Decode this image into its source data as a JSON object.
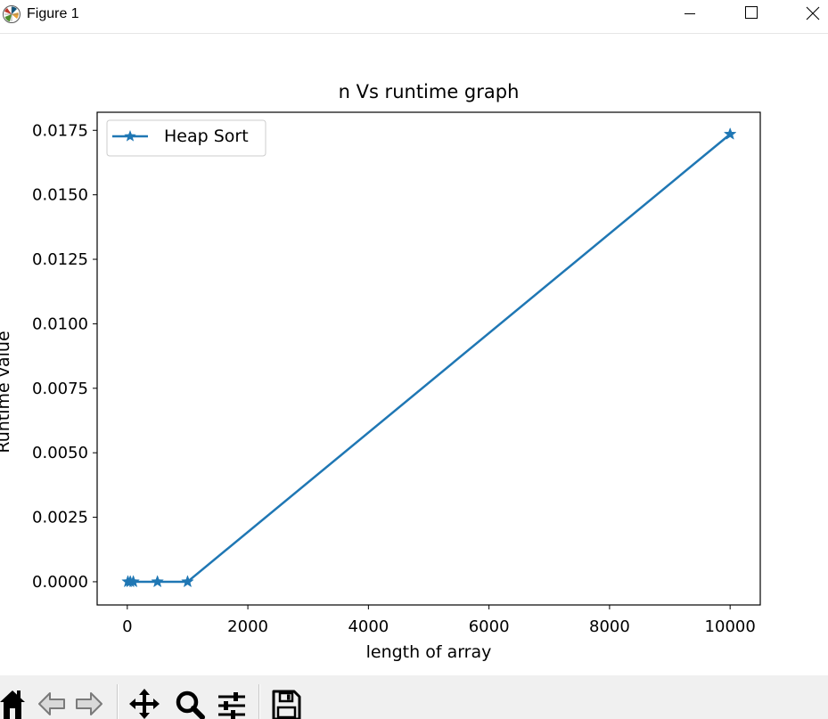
{
  "window": {
    "title": "Figure 1"
  },
  "colors": {
    "series": "#1f77b4",
    "axes": "#000000",
    "toolbar_bg": "#f0f0f0"
  },
  "toolbar": {
    "icons": [
      "home-icon",
      "back-icon",
      "forward-icon",
      "pan-icon",
      "zoom-icon",
      "configure-subplots-icon",
      "save-icon"
    ]
  },
  "chart_data": {
    "type": "line",
    "title": "n Vs runtime graph",
    "xlabel": "length of array",
    "ylabel": "Runtime value",
    "xlim": [
      -500,
      10500
    ],
    "ylim": [
      -0.0009,
      0.0182
    ],
    "xticks": [
      0,
      2000,
      4000,
      6000,
      8000,
      10000
    ],
    "xtick_labels": [
      "0",
      "2000",
      "4000",
      "6000",
      "8000",
      "10000"
    ],
    "yticks": [
      0,
      0.0025,
      0.005,
      0.0075,
      0.01,
      0.0125,
      0.015,
      0.0175
    ],
    "ytick_labels": [
      "0.0000",
      "0.0025",
      "0.0050",
      "0.0075",
      "0.0100",
      "0.0125",
      "0.0150",
      "0.0175"
    ],
    "grid": false,
    "legend": "upper-left",
    "marker": "star",
    "series": [
      {
        "name": "Heap Sort",
        "x": [
          10,
          50,
          100,
          500,
          1000,
          10000
        ],
        "y": [
          0.0,
          0.0,
          0.0,
          0.0,
          0.0,
          0.01735
        ]
      }
    ]
  }
}
